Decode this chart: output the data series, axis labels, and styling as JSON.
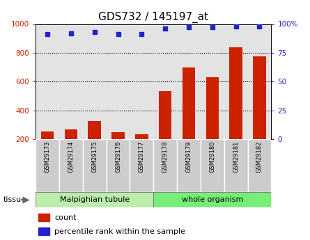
{
  "title": "GDS732 / 145197_at",
  "samples": [
    "GSM29173",
    "GSM29174",
    "GSM29175",
    "GSM29176",
    "GSM29177",
    "GSM29178",
    "GSM29179",
    "GSM29180",
    "GSM29181",
    "GSM29182"
  ],
  "counts": [
    255,
    268,
    325,
    248,
    235,
    535,
    700,
    630,
    840,
    775
  ],
  "percentiles": [
    91,
    92,
    93,
    91,
    91,
    96,
    97,
    97,
    98,
    98
  ],
  "bar_color": "#cc2200",
  "dot_color": "#2222cc",
  "left_ylim": [
    200,
    1000
  ],
  "left_yticks": [
    200,
    400,
    600,
    800,
    1000
  ],
  "right_ylim": [
    0,
    100
  ],
  "right_yticks": [
    0,
    25,
    50,
    75,
    100
  ],
  "right_yticklabels": [
    "0",
    "25",
    "50",
    "75",
    "100%"
  ],
  "tick_label_fontsize": 7.5,
  "title_fontsize": 11,
  "legend_count_color": "#cc2200",
  "legend_pct_color": "#2222cc",
  "mal_color": "#bbeeaa",
  "wo_color": "#77ee77",
  "sample_bg_color": "#cccccc"
}
